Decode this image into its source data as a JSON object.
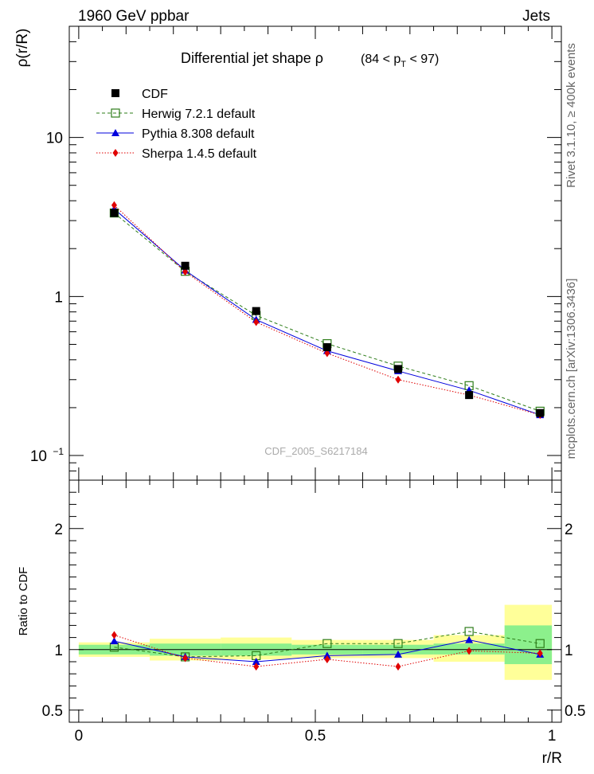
{
  "header": {
    "left": "1960 GeV ppbar",
    "right": "Jets"
  },
  "side_labels": {
    "rivet": "Rivet 3.1.10, ≥ 400k events",
    "mcplots": "mcplots.cern.ch [arXiv:1306.3436]"
  },
  "chart_data": [
    {
      "type": "line",
      "title": "Differential jet shape  ρ (84 < p_T < 97)",
      "title_main": "Differential jet shape  ρ",
      "title_range_pre": "(84 < p",
      "title_range_sub": "T",
      "title_range_post": " < 97)",
      "ylabel": "ρ(r/R)",
      "yscale": "log",
      "ylim": [
        0.07,
        50
      ],
      "xlim": [
        -0.02,
        1.02
      ],
      "yticks_major": [
        0.1,
        1,
        10
      ],
      "ytick_labels": [
        "10",
        "1",
        "10"
      ],
      "ytick_exp": "−1",
      "watermark": "CDF_2005_S6217184",
      "x": [
        0.075,
        0.225,
        0.375,
        0.525,
        0.675,
        0.825,
        0.975
      ],
      "data": {
        "name": "CDF",
        "color": "#000000",
        "values": [
          3.35,
          1.56,
          0.81,
          0.48,
          0.35,
          0.24,
          0.185
        ]
      },
      "series": [
        {
          "name": "Herwig 7.2.1 default",
          "color": "#2e7d1a",
          "marker": "open-square",
          "dash": "4,3",
          "values": [
            3.35,
            1.44,
            0.76,
            0.505,
            0.365,
            0.275,
            0.19
          ]
        },
        {
          "name": "Pythia 8.308 default",
          "color": "#0000dd",
          "marker": "triangle",
          "dash": "",
          "values": [
            3.55,
            1.46,
            0.715,
            0.455,
            0.34,
            0.257,
            0.18
          ]
        },
        {
          "name": "Sherpa 1.4.5 default",
          "color": "#e00000",
          "marker": "diamond",
          "dash": "1.5,2",
          "values": [
            3.75,
            1.43,
            0.69,
            0.44,
            0.3,
            0.24,
            0.18
          ]
        }
      ]
    },
    {
      "type": "line",
      "ylabel": "Ratio to CDF",
      "xlabel": "r/R",
      "ylim": [
        0.4,
        2.4
      ],
      "xlim": [
        -0.02,
        1.02
      ],
      "yticks_labeled": [
        0.5,
        1,
        2
      ],
      "ytick_labels": [
        "0.5",
        "1",
        "2"
      ],
      "xticks_labeled": [
        0,
        0.5,
        1
      ],
      "xtick_labels": [
        "0",
        "0.5",
        "1"
      ],
      "x": [
        0.075,
        0.225,
        0.375,
        0.525,
        0.675,
        0.825,
        0.975
      ],
      "bands": {
        "bin_edges": [
          0.0,
          0.15,
          0.3,
          0.45,
          0.6,
          0.75,
          0.9,
          1.0
        ],
        "stat_color": "#8cf08c",
        "syst_color": "#ffff99",
        "stat_low": [
          0.96,
          0.95,
          0.95,
          0.96,
          0.96,
          0.96,
          0.88
        ],
        "stat_high": [
          1.04,
          1.05,
          1.05,
          1.04,
          1.04,
          1.05,
          1.2
        ],
        "syst_low": [
          0.94,
          0.91,
          0.92,
          0.93,
          0.93,
          0.9,
          0.75
        ],
        "syst_high": [
          1.06,
          1.09,
          1.1,
          1.08,
          1.08,
          1.12,
          1.37
        ]
      },
      "series": [
        {
          "name": "Herwig 7.2.1 default",
          "values": [
            1.02,
            0.94,
            0.95,
            1.05,
            1.05,
            1.15,
            1.05
          ]
        },
        {
          "name": "Pythia 8.308 default",
          "values": [
            1.07,
            0.94,
            0.9,
            0.95,
            0.96,
            1.08,
            0.96
          ]
        },
        {
          "name": "Sherpa 1.4.5 default",
          "values": [
            1.12,
            0.93,
            0.86,
            0.92,
            0.86,
            0.99,
            0.97
          ]
        }
      ]
    }
  ]
}
